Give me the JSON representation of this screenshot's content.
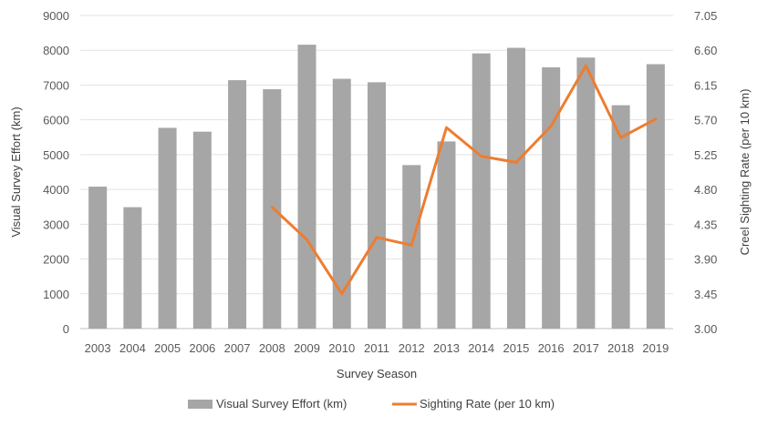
{
  "chart_data": {
    "type": "bar+line",
    "categories": [
      "2003",
      "2004",
      "2005",
      "2006",
      "2007",
      "2008",
      "2009",
      "2010",
      "2011",
      "2012",
      "2013",
      "2014",
      "2015",
      "2016",
      "2017",
      "2018",
      "2019"
    ],
    "series": [
      {
        "name": "Visual Survey Effort (km)",
        "type": "bar",
        "axis": "left",
        "color": "#a6a6a6",
        "values": [
          4080,
          3490,
          5770,
          5660,
          7140,
          6880,
          8160,
          7180,
          7080,
          4700,
          5380,
          7910,
          8070,
          7510,
          7790,
          6420,
          7600
        ]
      },
      {
        "name": "Sighting Rate (per 10 km)",
        "type": "line",
        "axis": "right",
        "color": "#ed7d31",
        "values": [
          null,
          null,
          null,
          null,
          null,
          4.57,
          4.15,
          3.45,
          4.18,
          4.08,
          5.6,
          5.23,
          5.15,
          5.62,
          6.4,
          5.47,
          5.71
        ]
      }
    ],
    "left_axis": {
      "label": "Visual Survey Effort (km)",
      "min": 0,
      "max": 9000,
      "ticks": [
        "0",
        "1000",
        "2000",
        "3000",
        "4000",
        "5000",
        "6000",
        "7000",
        "8000",
        "9000"
      ]
    },
    "right_axis": {
      "label": "Creel Sighting Rate (per 10 km)",
      "min": 3.0,
      "max": 7.05,
      "ticks": [
        "3.00",
        "3.45",
        "3.90",
        "4.35",
        "4.80",
        "5.25",
        "5.70",
        "6.15",
        "6.60",
        "7.05"
      ]
    },
    "xlabel": "Survey Season",
    "gridlines": true,
    "legend": "bottom-center"
  }
}
